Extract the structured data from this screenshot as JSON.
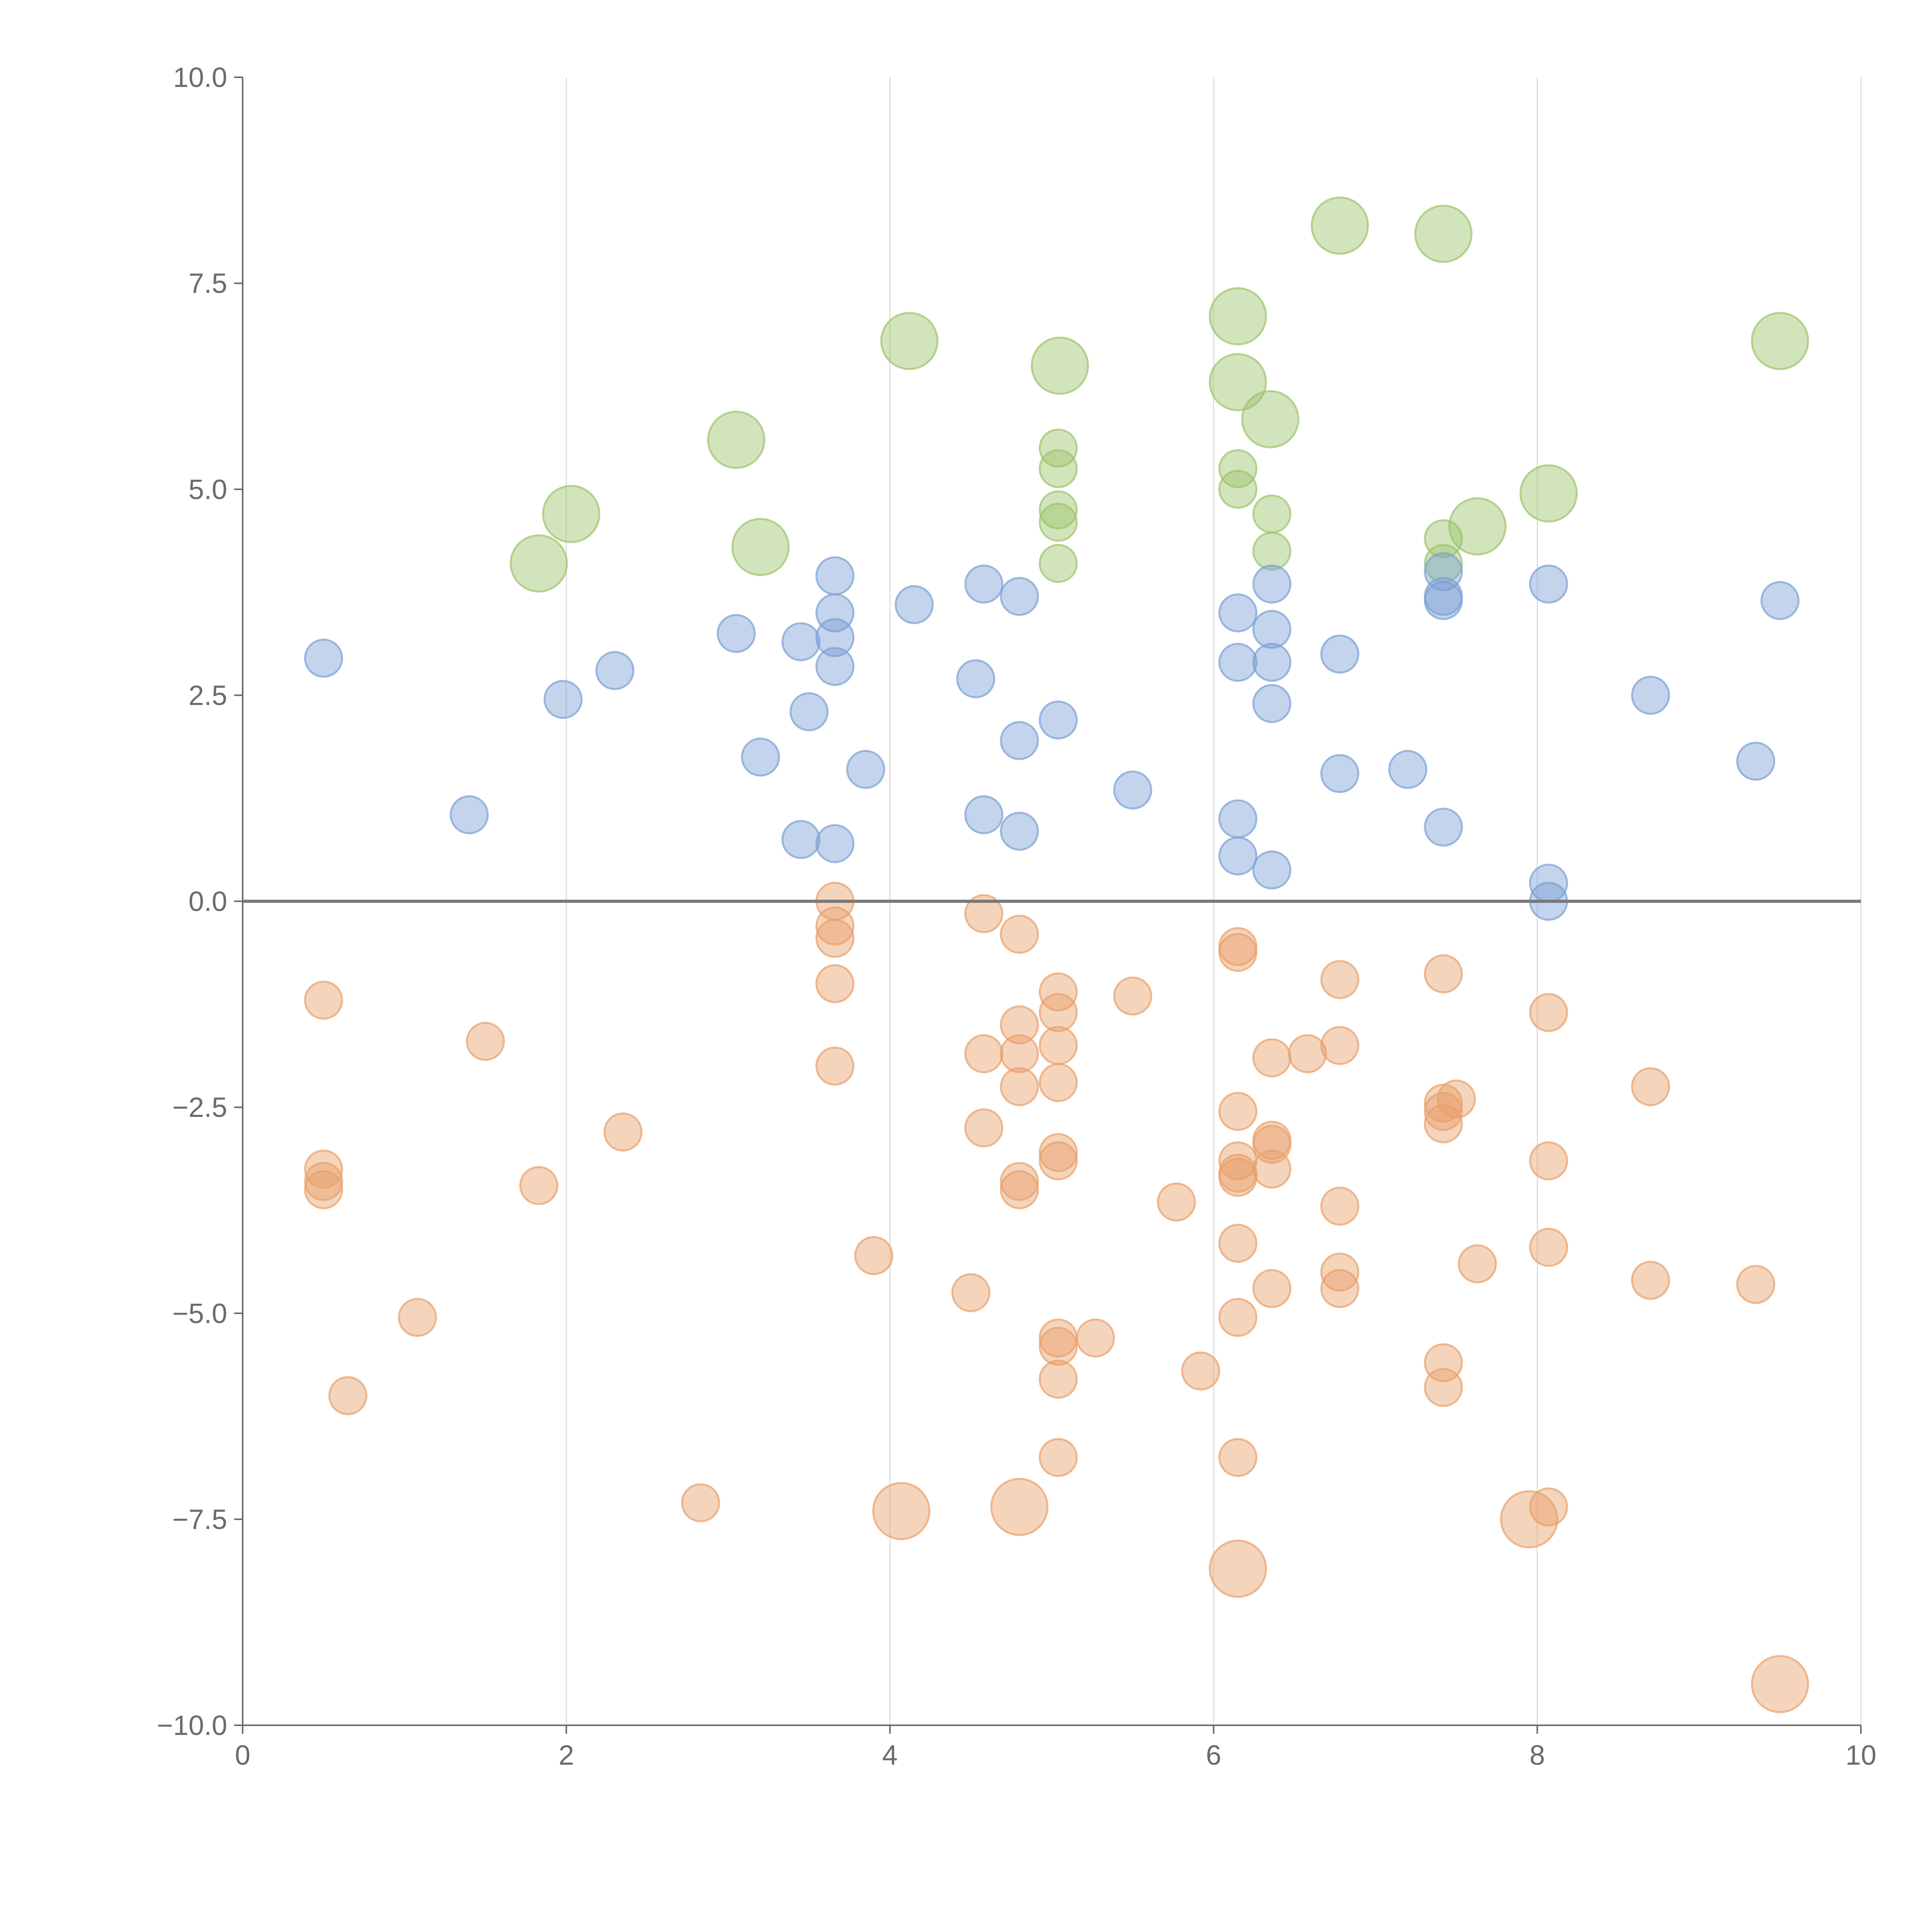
{
  "chart_data": {
    "type": "scatter",
    "title": "",
    "xlabel": "",
    "ylabel": "",
    "xlim": [
      0,
      10
    ],
    "ylim": [
      -10,
      10
    ],
    "x_ticks": [
      "0",
      "2",
      "4",
      "6",
      "8",
      "10"
    ],
    "y_ticks": [
      "10.0",
      "7.5",
      "5.0",
      "2.5",
      "0.0",
      "−2.5",
      "−5.0",
      "−7.5",
      "−10.0"
    ],
    "grid": "vertical lines at x ticks",
    "reference_line": {
      "y": 0
    },
    "colors": {
      "green": "#9cc36a",
      "blue": "#7b9fd4",
      "orange": "#e8a06a"
    },
    "series": [
      {
        "color": "green",
        "points": [
          {
            "x": 1.83,
            "y": 4.1,
            "size": 2.3
          },
          {
            "x": 2.03,
            "y": 4.7,
            "size": 2.3
          },
          {
            "x": 3.05,
            "y": 5.6,
            "size": 2.3
          },
          {
            "x": 3.2,
            "y": 4.3,
            "size": 2.3
          },
          {
            "x": 4.12,
            "y": 6.8,
            "size": 2.3
          },
          {
            "x": 5.05,
            "y": 6.5,
            "size": 2.3
          },
          {
            "x": 5.04,
            "y": 5.5,
            "size": 1
          },
          {
            "x": 5.04,
            "y": 5.25,
            "size": 1
          },
          {
            "x": 5.04,
            "y": 4.75,
            "size": 1
          },
          {
            "x": 5.04,
            "y": 4.6,
            "size": 1
          },
          {
            "x": 5.04,
            "y": 4.1,
            "size": 1
          },
          {
            "x": 6.15,
            "y": 7.1,
            "size": 2.3
          },
          {
            "x": 6.15,
            "y": 6.3,
            "size": 2.3
          },
          {
            "x": 6.35,
            "y": 5.85,
            "size": 2.3
          },
          {
            "x": 6.15,
            "y": 5.25,
            "size": 1
          },
          {
            "x": 6.15,
            "y": 5.0,
            "size": 1
          },
          {
            "x": 6.36,
            "y": 4.7,
            "size": 1
          },
          {
            "x": 6.36,
            "y": 4.25,
            "size": 1
          },
          {
            "x": 6.78,
            "y": 8.2,
            "size": 2.3
          },
          {
            "x": 7.42,
            "y": 8.1,
            "size": 2.3
          },
          {
            "x": 7.42,
            "y": 4.4,
            "size": 1
          },
          {
            "x": 7.42,
            "y": 4.1,
            "size": 1
          },
          {
            "x": 7.63,
            "y": 4.55,
            "size": 2.3
          },
          {
            "x": 8.07,
            "y": 4.95,
            "size": 2.3
          },
          {
            "x": 9.5,
            "y": 6.8,
            "size": 2.3
          }
        ]
      },
      {
        "color": "blue",
        "points": [
          {
            "x": 0.5,
            "y": 2.95,
            "size": 1
          },
          {
            "x": 1.4,
            "y": 1.05,
            "size": 1
          },
          {
            "x": 1.98,
            "y": 2.45,
            "size": 1
          },
          {
            "x": 2.3,
            "y": 2.8,
            "size": 1
          },
          {
            "x": 3.05,
            "y": 3.25,
            "size": 1
          },
          {
            "x": 3.2,
            "y": 1.75,
            "size": 1
          },
          {
            "x": 3.45,
            "y": 3.15,
            "size": 1
          },
          {
            "x": 3.45,
            "y": 0.75,
            "size": 1
          },
          {
            "x": 3.5,
            "y": 2.3,
            "size": 1
          },
          {
            "x": 3.66,
            "y": 3.95,
            "size": 1
          },
          {
            "x": 3.66,
            "y": 3.5,
            "size": 1
          },
          {
            "x": 3.66,
            "y": 3.2,
            "size": 1
          },
          {
            "x": 3.66,
            "y": 2.85,
            "size": 1
          },
          {
            "x": 3.66,
            "y": 0.7,
            "size": 1
          },
          {
            "x": 3.85,
            "y": 1.6,
            "size": 1
          },
          {
            "x": 4.15,
            "y": 3.6,
            "size": 1
          },
          {
            "x": 4.53,
            "y": 2.7,
            "size": 1
          },
          {
            "x": 4.58,
            "y": 3.85,
            "size": 1
          },
          {
            "x": 4.58,
            "y": 1.05,
            "size": 1
          },
          {
            "x": 4.8,
            "y": 3.7,
            "size": 1
          },
          {
            "x": 4.8,
            "y": 1.95,
            "size": 1
          },
          {
            "x": 4.8,
            "y": 0.85,
            "size": 1
          },
          {
            "x": 5.04,
            "y": 2.2,
            "size": 1
          },
          {
            "x": 5.5,
            "y": 1.35,
            "size": 1
          },
          {
            "x": 6.15,
            "y": 3.5,
            "size": 1
          },
          {
            "x": 6.15,
            "y": 2.9,
            "size": 1
          },
          {
            "x": 6.15,
            "y": 1.0,
            "size": 1
          },
          {
            "x": 6.15,
            "y": 0.55,
            "size": 1
          },
          {
            "x": 6.36,
            "y": 3.85,
            "size": 1
          },
          {
            "x": 6.36,
            "y": 3.3,
            "size": 1
          },
          {
            "x": 6.36,
            "y": 2.9,
            "size": 1
          },
          {
            "x": 6.36,
            "y": 2.4,
            "size": 1
          },
          {
            "x": 6.36,
            "y": 0.38,
            "size": 1
          },
          {
            "x": 6.78,
            "y": 3.0,
            "size": 1
          },
          {
            "x": 6.78,
            "y": 1.55,
            "size": 1
          },
          {
            "x": 7.2,
            "y": 1.6,
            "size": 1
          },
          {
            "x": 7.42,
            "y": 4.0,
            "size": 1
          },
          {
            "x": 7.42,
            "y": 3.7,
            "size": 1
          },
          {
            "x": 7.42,
            "y": 3.65,
            "size": 1
          },
          {
            "x": 7.42,
            "y": 0.9,
            "size": 1
          },
          {
            "x": 8.07,
            "y": 3.85,
            "size": 1
          },
          {
            "x": 8.07,
            "y": 0.22,
            "size": 1
          },
          {
            "x": 8.07,
            "y": 0.0,
            "size": 1
          },
          {
            "x": 8.7,
            "y": 2.5,
            "size": 1
          },
          {
            "x": 9.35,
            "y": 1.7,
            "size": 1
          },
          {
            "x": 9.5,
            "y": 3.65,
            "size": 1
          }
        ]
      },
      {
        "color": "orange",
        "points": [
          {
            "x": 0.5,
            "y": -1.2,
            "size": 1
          },
          {
            "x": 0.5,
            "y": -3.25,
            "size": 1
          },
          {
            "x": 0.5,
            "y": -3.4,
            "size": 1
          },
          {
            "x": 0.5,
            "y": -3.5,
            "size": 1
          },
          {
            "x": 0.65,
            "y": -6.0,
            "size": 1
          },
          {
            "x": 1.08,
            "y": -5.05,
            "size": 1
          },
          {
            "x": 1.5,
            "y": -1.7,
            "size": 1
          },
          {
            "x": 1.83,
            "y": -3.45,
            "size": 1
          },
          {
            "x": 2.35,
            "y": -2.8,
            "size": 1
          },
          {
            "x": 2.83,
            "y": -7.3,
            "size": 1
          },
          {
            "x": 3.66,
            "y": 0.0,
            "size": 1
          },
          {
            "x": 3.66,
            "y": -0.3,
            "size": 1
          },
          {
            "x": 3.66,
            "y": -0.45,
            "size": 1
          },
          {
            "x": 3.66,
            "y": -1.0,
            "size": 1
          },
          {
            "x": 3.66,
            "y": -2.0,
            "size": 1
          },
          {
            "x": 3.9,
            "y": -4.3,
            "size": 1
          },
          {
            "x": 4.07,
            "y": -7.4,
            "size": 2.3
          },
          {
            "x": 4.5,
            "y": -4.75,
            "size": 1
          },
          {
            "x": 4.58,
            "y": -0.15,
            "size": 1
          },
          {
            "x": 4.58,
            "y": -1.85,
            "size": 1
          },
          {
            "x": 4.58,
            "y": -2.75,
            "size": 1
          },
          {
            "x": 4.8,
            "y": -0.4,
            "size": 1
          },
          {
            "x": 4.8,
            "y": -1.5,
            "size": 1
          },
          {
            "x": 4.8,
            "y": -1.85,
            "size": 1
          },
          {
            "x": 4.8,
            "y": -2.25,
            "size": 1
          },
          {
            "x": 4.8,
            "y": -3.4,
            "size": 1
          },
          {
            "x": 4.8,
            "y": -3.5,
            "size": 1
          },
          {
            "x": 4.8,
            "y": -7.35,
            "size": 2.3
          },
          {
            "x": 5.04,
            "y": -1.1,
            "size": 1
          },
          {
            "x": 5.04,
            "y": -1.35,
            "size": 1
          },
          {
            "x": 5.04,
            "y": -1.75,
            "size": 1
          },
          {
            "x": 5.04,
            "y": -2.2,
            "size": 1
          },
          {
            "x": 5.04,
            "y": -3.05,
            "size": 1
          },
          {
            "x": 5.04,
            "y": -3.15,
            "size": 1
          },
          {
            "x": 5.04,
            "y": -5.3,
            "size": 1
          },
          {
            "x": 5.04,
            "y": -5.4,
            "size": 1
          },
          {
            "x": 5.04,
            "y": -5.8,
            "size": 1
          },
          {
            "x": 5.04,
            "y": -6.75,
            "size": 1
          },
          {
            "x": 5.27,
            "y": -5.3,
            "size": 1
          },
          {
            "x": 5.5,
            "y": -1.15,
            "size": 1
          },
          {
            "x": 5.77,
            "y": -3.65,
            "size": 1
          },
          {
            "x": 5.92,
            "y": -5.7,
            "size": 1
          },
          {
            "x": 6.15,
            "y": -0.55,
            "size": 1
          },
          {
            "x": 6.15,
            "y": -0.62,
            "size": 1
          },
          {
            "x": 6.15,
            "y": -2.55,
            "size": 1
          },
          {
            "x": 6.15,
            "y": -3.15,
            "size": 1
          },
          {
            "x": 6.15,
            "y": -3.3,
            "size": 1
          },
          {
            "x": 6.15,
            "y": -3.35,
            "size": 1
          },
          {
            "x": 6.15,
            "y": -4.15,
            "size": 1
          },
          {
            "x": 6.15,
            "y": -5.05,
            "size": 1
          },
          {
            "x": 6.15,
            "y": -6.75,
            "size": 1
          },
          {
            "x": 6.15,
            "y": -8.1,
            "size": 2.3
          },
          {
            "x": 6.36,
            "y": -1.9,
            "size": 1
          },
          {
            "x": 6.36,
            "y": -2.9,
            "size": 1
          },
          {
            "x": 6.36,
            "y": -2.95,
            "size": 1
          },
          {
            "x": 6.36,
            "y": -3.25,
            "size": 1
          },
          {
            "x": 6.36,
            "y": -4.7,
            "size": 1
          },
          {
            "x": 6.58,
            "y": -1.85,
            "size": 1
          },
          {
            "x": 6.78,
            "y": -0.95,
            "size": 1
          },
          {
            "x": 6.78,
            "y": -1.75,
            "size": 1
          },
          {
            "x": 6.78,
            "y": -3.7,
            "size": 1
          },
          {
            "x": 6.78,
            "y": -4.5,
            "size": 1
          },
          {
            "x": 6.78,
            "y": -4.7,
            "size": 1
          },
          {
            "x": 7.42,
            "y": -0.88,
            "size": 1
          },
          {
            "x": 7.42,
            "y": -2.45,
            "size": 1
          },
          {
            "x": 7.42,
            "y": -2.55,
            "size": 1
          },
          {
            "x": 7.42,
            "y": -2.7,
            "size": 1
          },
          {
            "x": 7.5,
            "y": -2.4,
            "size": 1
          },
          {
            "x": 7.42,
            "y": -5.6,
            "size": 1
          },
          {
            "x": 7.42,
            "y": -5.9,
            "size": 1
          },
          {
            "x": 7.63,
            "y": -4.4,
            "size": 1
          },
          {
            "x": 7.95,
            "y": -7.5,
            "size": 2.3
          },
          {
            "x": 8.07,
            "y": -1.35,
            "size": 1
          },
          {
            "x": 8.07,
            "y": -3.15,
            "size": 1
          },
          {
            "x": 8.07,
            "y": -4.2,
            "size": 1
          },
          {
            "x": 8.07,
            "y": -7.35,
            "size": 1
          },
          {
            "x": 8.7,
            "y": -2.25,
            "size": 1
          },
          {
            "x": 8.7,
            "y": -4.6,
            "size": 1
          },
          {
            "x": 9.35,
            "y": -4.65,
            "size": 1
          },
          {
            "x": 9.5,
            "y": -9.5,
            "size": 2.3
          }
        ]
      }
    ]
  }
}
